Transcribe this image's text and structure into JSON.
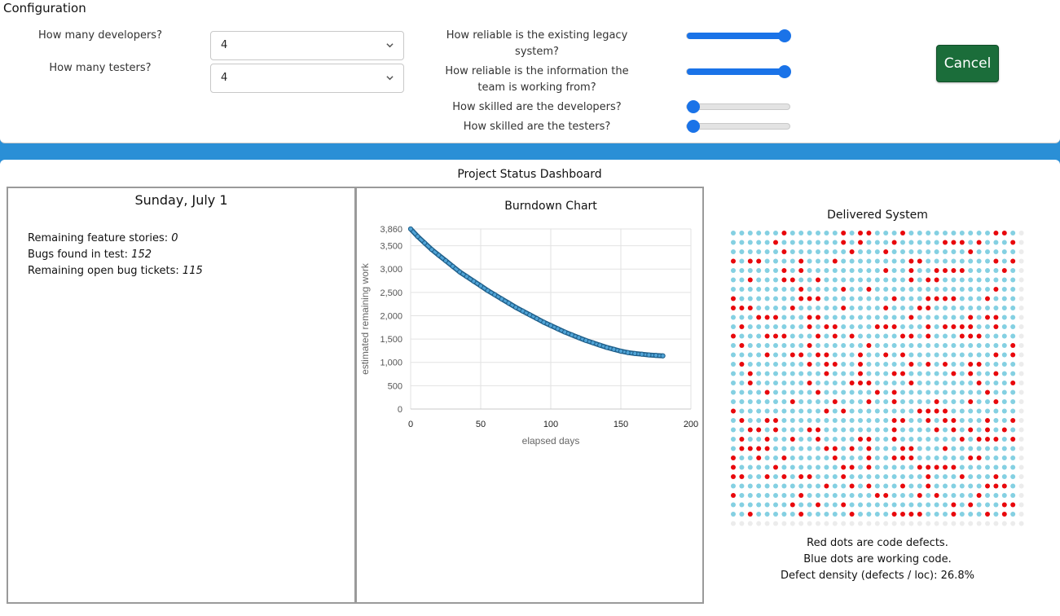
{
  "configuration": {
    "title": "Configuration",
    "developers": {
      "label": "How many developers?",
      "value": "4"
    },
    "testers": {
      "label": "How many testers?",
      "value": "4"
    },
    "sliders": [
      {
        "label": "How reliable is the existing legacy system?",
        "value": 1.0
      },
      {
        "label": "How reliable is the information the team is working from?",
        "value": 1.0
      },
      {
        "label": "How skilled are the developers?",
        "value": 0.0
      },
      {
        "label": "How skilled are the testers?",
        "value": 0.0
      }
    ],
    "cancel_label": "Cancel",
    "accent_color": "#1a73e8",
    "cancel_color": "#1b6d3a"
  },
  "dashboard": {
    "title": "Project Status Dashboard",
    "date": "Sunday, July 1",
    "remaining_label": "Remaining feature stories: ",
    "remaining_value": "0",
    "bugs_label": "Bugs found in test: ",
    "bugs_value": "152",
    "open_label": "Remaining open bug tickets: ",
    "open_value": "115"
  },
  "chart_data": {
    "type": "line",
    "title": "Burndown Chart",
    "xlabel": "elapsed days",
    "ylabel": "estimated remaining work",
    "xlim": [
      0,
      200
    ],
    "ylim": [
      0,
      3860
    ],
    "xticks": [
      0,
      50,
      100,
      150,
      200
    ],
    "yticks": [
      0,
      500,
      1000,
      1500,
      2000,
      2500,
      3000,
      3500,
      3860
    ],
    "ytick_labels": [
      "0",
      "500",
      "1,000",
      "1,500",
      "2,000",
      "2,500",
      "3,000",
      "3,500",
      "3,860"
    ],
    "grid": true,
    "series": [
      {
        "name": "remaining work",
        "color": "#3a86b8",
        "x": [
          0,
          5,
          10,
          15,
          20,
          25,
          30,
          35,
          40,
          45,
          50,
          55,
          60,
          65,
          70,
          75,
          80,
          85,
          90,
          95,
          100,
          105,
          110,
          115,
          120,
          125,
          130,
          135,
          140,
          145,
          150,
          155,
          160,
          165,
          170,
          175,
          180
        ],
        "y": [
          3860,
          3700,
          3560,
          3420,
          3300,
          3180,
          3060,
          2940,
          2840,
          2740,
          2640,
          2540,
          2450,
          2360,
          2270,
          2180,
          2100,
          2020,
          1940,
          1860,
          1790,
          1720,
          1650,
          1590,
          1530,
          1470,
          1420,
          1370,
          1320,
          1280,
          1240,
          1210,
          1190,
          1175,
          1160,
          1150,
          1140
        ]
      }
    ]
  },
  "delivered": {
    "title": "Delivered System",
    "columns": 35,
    "rows": 32,
    "delivered_rows": 31,
    "defect_fraction": 0.268,
    "defect_color": "#e8080c",
    "working_color": "#84d0e2",
    "empty_color": "#ececec",
    "legend": [
      "Red dots are code defects.",
      "Blue dots are working code.",
      "Defect density (defects / loc): 26.8%"
    ]
  }
}
